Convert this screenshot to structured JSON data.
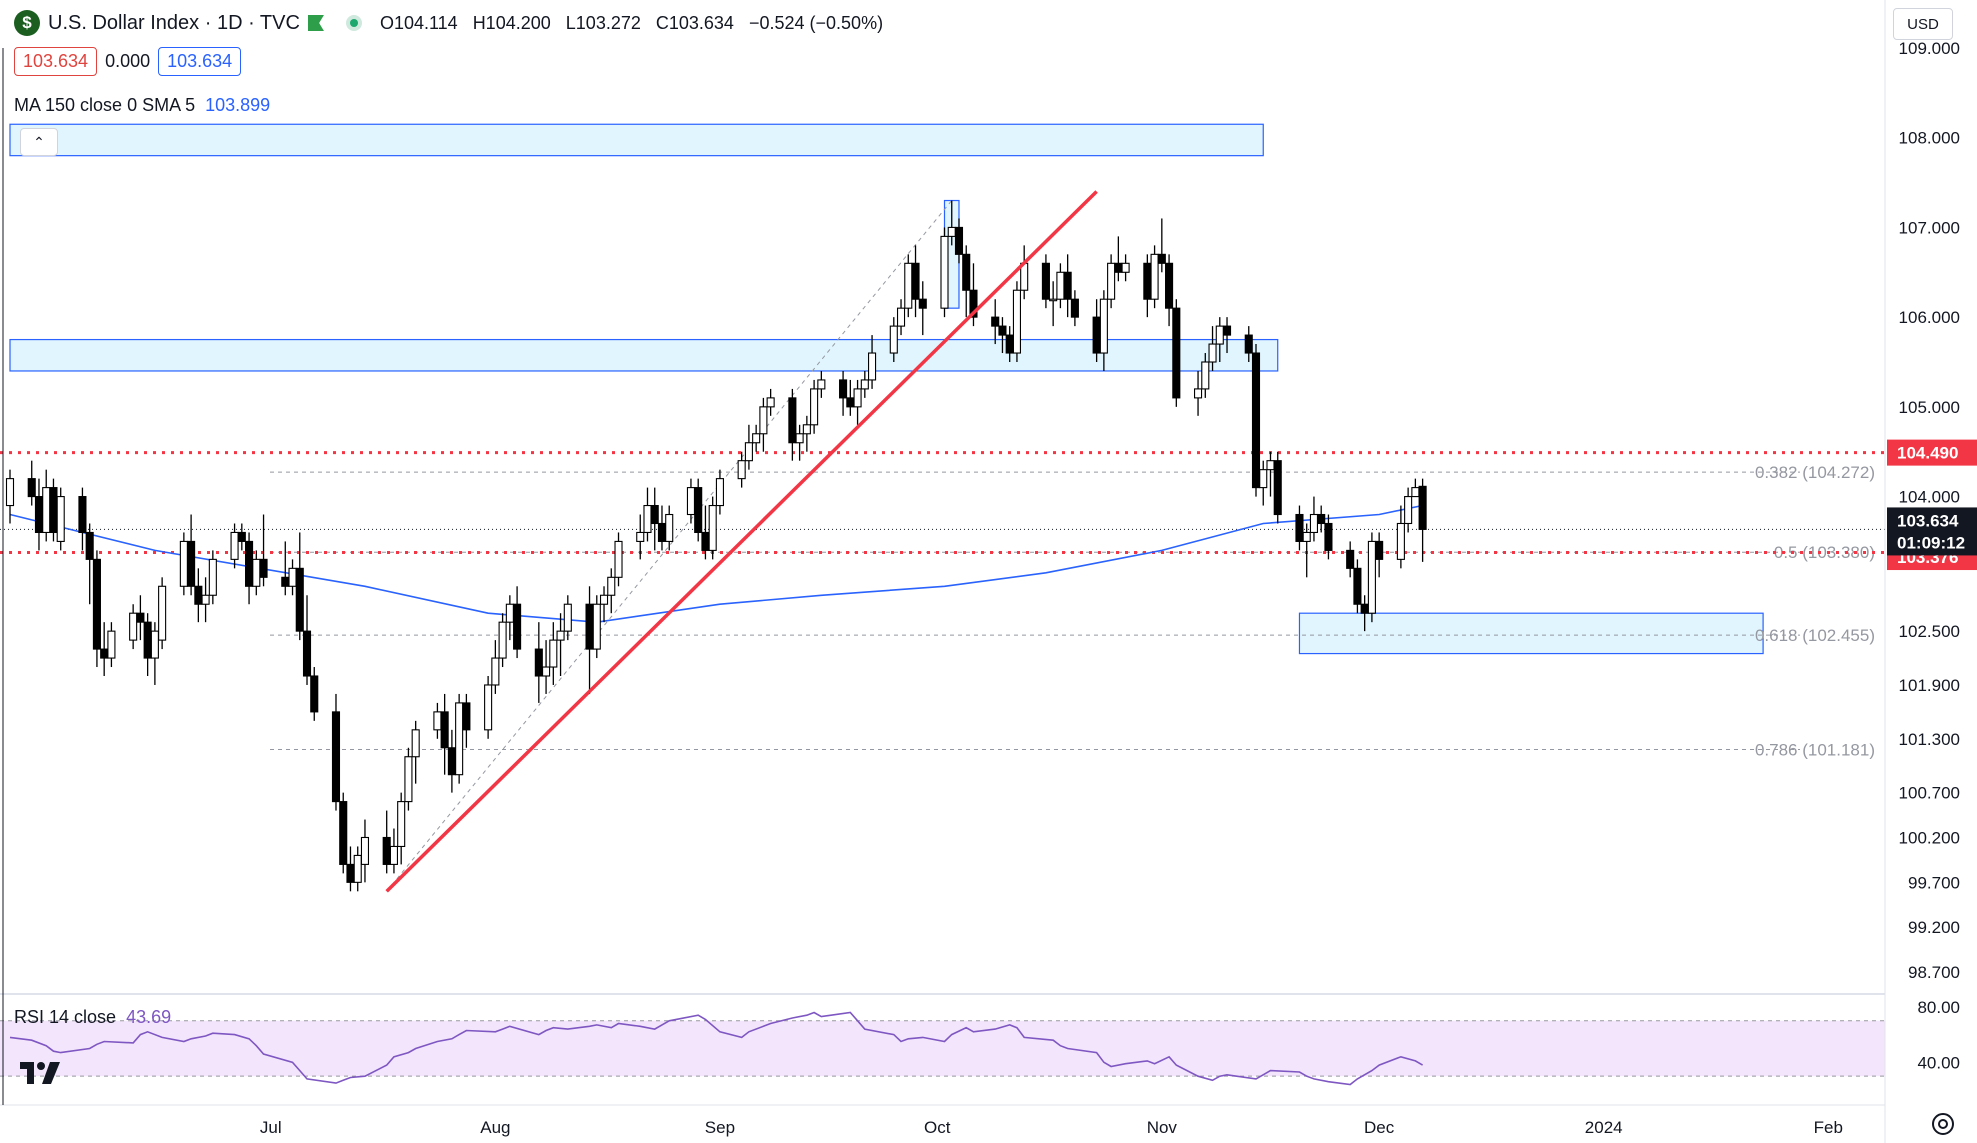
{
  "header": {
    "logo_text": "$",
    "title": "U.S. Dollar Index · 1D · TVC",
    "ohlc": {
      "open_label": "O104.114",
      "high_label": "H104.200",
      "low_label": "L103.272",
      "close_label": "C103.634",
      "change_label": "−0.524 (−0.50%)"
    },
    "bid": "103.634",
    "spread": "0.000",
    "ask": "103.634",
    "ma_label": "MA 150 close 0 SMA 5",
    "ma_value": "103.899",
    "currency": "USD",
    "collapse_icon": "chevron-up-icon"
  },
  "rsi": {
    "label": "RSI 14 close",
    "value": "43.69",
    "axis_ticks": [
      "80.00",
      "40.00"
    ]
  },
  "colors": {
    "up": "#ffffff",
    "down": "#000000",
    "ma": "#2962ff",
    "trendline": "#f23645",
    "resistance_dotted": "#f23645",
    "zone_fill": "#e1f5fe",
    "zone_border": "#2962ff",
    "rsi_line": "#7e57c2",
    "rsi_band": "#f3e5fb"
  },
  "price_axis_ticks": [
    "109.000",
    "108.000",
    "107.000",
    "106.000",
    "105.000",
    "104.000",
    "102.500",
    "101.900",
    "101.300",
    "100.700",
    "100.200",
    "99.700",
    "99.200",
    "98.700"
  ],
  "price_labels": {
    "level_red": "104.490",
    "last_price": "103.634",
    "countdown": "01:09:12",
    "level_red_2": "103.376"
  },
  "fib_labels": [
    "0.382 (104.272)",
    "0.5 (103.380)",
    "0.618 (102.455)",
    "0.786 (101.181)"
  ],
  "time_axis": [
    "Jul",
    "Aug",
    "Sep",
    "Oct",
    "Nov",
    "Dec",
    "2024",
    "Feb"
  ],
  "chart_data": {
    "type": "candlestick",
    "title": "U.S. Dollar Index · 1D · TVC",
    "interval": "1D",
    "ylim": [
      98.5,
      109.0
    ],
    "x_range": [
      "2023-05-26",
      "2024-02-08"
    ],
    "candles": [
      [
        "2023-05-26",
        103.9,
        104.3,
        103.7,
        104.2
      ],
      [
        "2023-05-29",
        104.2,
        104.4,
        103.9,
        104.0
      ],
      [
        "2023-05-30",
        104.0,
        104.2,
        103.4,
        103.6
      ],
      [
        "2023-05-31",
        103.6,
        104.3,
        103.5,
        104.1
      ],
      [
        "2023-06-01",
        104.1,
        104.2,
        103.5,
        103.6
      ],
      [
        "2023-06-02",
        103.5,
        104.1,
        103.4,
        104.0
      ],
      [
        "2023-06-05",
        104.0,
        104.1,
        103.4,
        103.6
      ],
      [
        "2023-06-06",
        103.6,
        103.7,
        102.8,
        103.3
      ],
      [
        "2023-06-07",
        103.3,
        103.4,
        102.1,
        102.3
      ],
      [
        "2023-06-08",
        102.3,
        102.6,
        102.0,
        102.2
      ],
      [
        "2023-06-09",
        102.2,
        102.6,
        102.1,
        102.5
      ],
      [
        "2023-06-12",
        102.4,
        102.8,
        102.3,
        102.7
      ],
      [
        "2023-06-13",
        102.7,
        102.9,
        102.4,
        102.6
      ],
      [
        "2023-06-14",
        102.6,
        102.7,
        102.0,
        102.2
      ],
      [
        "2023-06-15",
        102.2,
        102.6,
        101.9,
        102.5
      ],
      [
        "2023-06-16",
        102.4,
        103.1,
        102.3,
        103.0
      ],
      [
        "2023-06-19",
        103.0,
        103.6,
        102.9,
        103.5
      ],
      [
        "2023-06-20",
        103.5,
        103.8,
        102.9,
        103.0
      ],
      [
        "2023-06-21",
        103.0,
        103.2,
        102.6,
        102.8
      ],
      [
        "2023-06-22",
        102.8,
        103.1,
        102.6,
        102.9
      ],
      [
        "2023-06-23",
        102.9,
        103.4,
        102.8,
        103.3
      ],
      [
        "2023-06-26",
        103.3,
        103.7,
        103.2,
        103.6
      ],
      [
        "2023-06-27",
        103.6,
        103.7,
        103.4,
        103.5
      ],
      [
        "2023-06-28",
        103.5,
        103.6,
        102.8,
        103.0
      ],
      [
        "2023-06-29",
        103.0,
        103.4,
        102.9,
        103.3
      ],
      [
        "2023-06-30",
        103.3,
        103.8,
        103.0,
        103.1
      ],
      [
        "2023-07-03",
        103.1,
        103.5,
        102.9,
        103.0
      ],
      [
        "2023-07-04",
        103.0,
        103.3,
        102.9,
        103.2
      ],
      [
        "2023-07-05",
        103.2,
        103.6,
        102.4,
        102.5
      ],
      [
        "2023-07-06",
        102.5,
        102.9,
        101.9,
        102.0
      ],
      [
        "2023-07-07",
        102.0,
        102.1,
        101.5,
        101.6
      ],
      [
        "2023-07-10",
        101.6,
        101.8,
        100.5,
        100.6
      ],
      [
        "2023-07-11",
        100.6,
        100.7,
        99.8,
        99.9
      ],
      [
        "2023-07-12",
        99.9,
        100.1,
        99.6,
        99.7
      ],
      [
        "2023-07-13",
        99.7,
        100.1,
        99.6,
        100.0
      ],
      [
        "2023-07-14",
        99.9,
        100.4,
        99.7,
        100.2
      ],
      [
        "2023-07-17",
        100.2,
        100.5,
        99.8,
        99.9
      ],
      [
        "2023-07-18",
        99.9,
        100.3,
        99.8,
        100.1
      ],
      [
        "2023-07-19",
        100.1,
        100.7,
        99.9,
        100.6
      ],
      [
        "2023-07-20",
        100.6,
        101.2,
        100.5,
        101.1
      ],
      [
        "2023-07-21",
        101.1,
        101.5,
        100.8,
        101.4
      ],
      [
        "2023-07-24",
        101.4,
        101.7,
        101.3,
        101.6
      ],
      [
        "2023-07-25",
        101.6,
        101.8,
        100.9,
        101.2
      ],
      [
        "2023-07-26",
        101.2,
        101.4,
        100.7,
        100.9
      ],
      [
        "2023-07-27",
        100.9,
        101.8,
        100.8,
        101.7
      ],
      [
        "2023-07-28",
        101.7,
        101.8,
        101.2,
        101.4
      ],
      [
        "2023-07-31",
        101.4,
        102.0,
        101.3,
        101.9
      ],
      [
        "2023-08-01",
        101.9,
        102.4,
        101.8,
        102.2
      ],
      [
        "2023-08-02",
        102.2,
        102.7,
        102.1,
        102.6
      ],
      [
        "2023-08-03",
        102.6,
        102.9,
        102.4,
        102.8
      ],
      [
        "2023-08-04",
        102.8,
        103.0,
        102.2,
        102.3
      ],
      [
        "2023-08-07",
        102.3,
        102.6,
        101.7,
        102.0
      ],
      [
        "2023-08-08",
        102.0,
        102.4,
        101.8,
        102.1
      ],
      [
        "2023-08-09",
        102.1,
        102.6,
        101.9,
        102.4
      ],
      [
        "2023-08-10",
        102.4,
        102.7,
        102.0,
        102.5
      ],
      [
        "2023-08-11",
        102.5,
        102.9,
        102.4,
        102.8
      ],
      [
        "2023-08-14",
        102.8,
        103.0,
        101.8,
        102.3
      ],
      [
        "2023-08-15",
        102.3,
        102.9,
        102.2,
        102.8
      ],
      [
        "2023-08-16",
        102.8,
        103.0,
        102.6,
        102.9
      ],
      [
        "2023-08-17",
        102.9,
        103.2,
        102.7,
        103.1
      ],
      [
        "2023-08-18",
        103.1,
        103.6,
        103.0,
        103.5
      ],
      [
        "2023-08-21",
        103.5,
        103.8,
        103.3,
        103.6
      ],
      [
        "2023-08-22",
        103.6,
        104.1,
        103.5,
        103.9
      ],
      [
        "2023-08-23",
        103.9,
        104.1,
        103.4,
        103.7
      ],
      [
        "2023-08-24",
        103.7,
        103.9,
        103.4,
        103.5
      ],
      [
        "2023-08-25",
        103.5,
        103.9,
        103.4,
        103.8
      ],
      [
        "2023-08-28",
        103.8,
        104.2,
        103.7,
        104.1
      ],
      [
        "2023-08-29",
        104.1,
        104.2,
        103.5,
        103.6
      ],
      [
        "2023-08-30",
        103.6,
        103.9,
        103.3,
        103.4
      ],
      [
        "2023-08-31",
        103.4,
        104.0,
        103.3,
        103.9
      ],
      [
        "2023-09-01",
        103.9,
        104.3,
        103.8,
        104.2
      ],
      [
        "2023-09-04",
        104.2,
        104.5,
        104.1,
        104.4
      ],
      [
        "2023-09-05",
        104.4,
        104.8,
        104.3,
        104.6
      ],
      [
        "2023-09-06",
        104.6,
        104.8,
        104.5,
        104.7
      ],
      [
        "2023-09-07",
        104.7,
        105.1,
        104.5,
        105.0
      ],
      [
        "2023-09-08",
        105.0,
        105.2,
        104.9,
        105.1
      ],
      [
        "2023-09-11",
        105.1,
        105.2,
        104.4,
        104.6
      ],
      [
        "2023-09-12",
        104.6,
        104.8,
        104.4,
        104.7
      ],
      [
        "2023-09-13",
        104.7,
        104.9,
        104.5,
        104.8
      ],
      [
        "2023-09-14",
        104.8,
        105.3,
        104.7,
        105.2
      ],
      [
        "2023-09-15",
        105.2,
        105.4,
        105.1,
        105.3
      ],
      [
        "2023-09-18",
        105.3,
        105.4,
        104.9,
        105.1
      ],
      [
        "2023-09-19",
        105.1,
        105.3,
        104.9,
        105.0
      ],
      [
        "2023-09-20",
        105.0,
        105.3,
        104.8,
        105.2
      ],
      [
        "2023-09-21",
        105.2,
        105.4,
        105.1,
        105.3
      ],
      [
        "2023-09-22",
        105.3,
        105.8,
        105.2,
        105.6
      ],
      [
        "2023-09-25",
        105.6,
        106.0,
        105.5,
        105.9
      ],
      [
        "2023-09-26",
        105.9,
        106.2,
        105.8,
        106.1
      ],
      [
        "2023-09-27",
        106.1,
        106.7,
        106.0,
        106.6
      ],
      [
        "2023-09-28",
        106.6,
        106.8,
        106.0,
        106.2
      ],
      [
        "2023-09-29",
        106.2,
        106.4,
        105.8,
        106.1
      ],
      [
        "2023-10-02",
        106.1,
        107.0,
        106.0,
        106.9
      ],
      [
        "2023-10-03",
        106.9,
        107.3,
        106.8,
        107.0
      ],
      [
        "2023-10-04",
        107.0,
        107.1,
        106.6,
        106.7
      ],
      [
        "2023-10-05",
        106.7,
        106.8,
        106.0,
        106.3
      ],
      [
        "2023-10-06",
        106.3,
        106.6,
        105.9,
        106.0
      ],
      [
        "2023-10-09",
        106.0,
        106.2,
        105.7,
        105.9
      ],
      [
        "2023-10-10",
        105.9,
        106.0,
        105.6,
        105.8
      ],
      [
        "2023-10-11",
        105.8,
        105.9,
        105.5,
        105.6
      ],
      [
        "2023-10-12",
        105.6,
        106.4,
        105.5,
        106.3
      ],
      [
        "2023-10-13",
        106.3,
        106.8,
        106.2,
        106.6
      ],
      [
        "2023-10-16",
        106.6,
        106.7,
        106.1,
        106.2
      ],
      [
        "2023-10-17",
        106.2,
        106.4,
        105.9,
        106.2
      ],
      [
        "2023-10-18",
        106.2,
        106.6,
        106.1,
        106.5
      ],
      [
        "2023-10-19",
        106.5,
        106.7,
        106.0,
        106.2
      ],
      [
        "2023-10-20",
        106.2,
        106.3,
        105.9,
        106.0
      ],
      [
        "2023-10-23",
        106.0,
        106.2,
        105.5,
        105.6
      ],
      [
        "2023-10-24",
        105.6,
        106.3,
        105.4,
        106.2
      ],
      [
        "2023-10-25",
        106.2,
        106.7,
        106.1,
        106.6
      ],
      [
        "2023-10-26",
        106.6,
        106.9,
        106.4,
        106.5
      ],
      [
        "2023-10-27",
        106.5,
        106.7,
        106.4,
        106.6
      ],
      [
        "2023-10-30",
        106.6,
        106.7,
        106.0,
        106.2
      ],
      [
        "2023-10-31",
        106.2,
        106.8,
        106.1,
        106.7
      ],
      [
        "2023-11-01",
        106.7,
        107.1,
        106.5,
        106.6
      ],
      [
        "2023-11-02",
        106.6,
        106.7,
        105.9,
        106.1
      ],
      [
        "2023-11-03",
        106.1,
        106.2,
        105.0,
        105.1
      ],
      [
        "2023-11-06",
        105.1,
        105.4,
        104.9,
        105.2
      ],
      [
        "2023-11-07",
        105.2,
        105.6,
        105.1,
        105.5
      ],
      [
        "2023-11-08",
        105.5,
        105.9,
        105.4,
        105.7
      ],
      [
        "2023-11-09",
        105.7,
        106.0,
        105.5,
        105.9
      ],
      [
        "2023-11-10",
        105.9,
        106.0,
        105.6,
        105.8
      ],
      [
        "2023-11-13",
        105.8,
        105.9,
        105.5,
        105.6
      ],
      [
        "2023-11-14",
        105.6,
        105.7,
        104.0,
        104.1
      ],
      [
        "2023-11-15",
        104.1,
        104.4,
        103.9,
        104.3
      ],
      [
        "2023-11-16",
        104.3,
        104.5,
        104.0,
        104.4
      ],
      [
        "2023-11-17",
        104.4,
        104.5,
        103.7,
        103.8
      ],
      [
        "2023-11-20",
        103.8,
        103.9,
        103.4,
        103.5
      ],
      [
        "2023-11-21",
        103.5,
        103.7,
        103.1,
        103.6
      ],
      [
        "2023-11-22",
        103.6,
        104.0,
        103.5,
        103.8
      ],
      [
        "2023-11-23",
        103.8,
        103.9,
        103.6,
        103.7
      ],
      [
        "2023-11-24",
        103.7,
        103.8,
        103.3,
        103.4
      ],
      [
        "2023-11-27",
        103.4,
        103.5,
        103.1,
        103.2
      ],
      [
        "2023-11-28",
        103.2,
        103.3,
        102.7,
        102.8
      ],
      [
        "2023-11-29",
        102.8,
        102.9,
        102.5,
        102.7
      ],
      [
        "2023-11-30",
        102.7,
        103.6,
        102.6,
        103.5
      ],
      [
        "2023-12-01",
        103.5,
        103.6,
        103.1,
        103.3
      ],
      [
        "2023-12-04",
        103.3,
        103.9,
        103.2,
        103.7
      ],
      [
        "2023-12-05",
        103.7,
        104.1,
        103.6,
        104.0
      ],
      [
        "2023-12-06",
        104.0,
        104.2,
        104.0,
        104.1
      ],
      [
        "2023-12-07",
        104.114,
        104.2,
        103.272,
        103.634
      ]
    ],
    "ma": {
      "name": "MA 150 close 0 SMA 5",
      "points": [
        [
          "2023-05-26",
          103.8
        ],
        [
          "2023-06-15",
          103.4
        ],
        [
          "2023-07-14",
          103.0
        ],
        [
          "2023-07-31",
          102.7
        ],
        [
          "2023-08-15",
          102.6
        ],
        [
          "2023-09-01",
          102.8
        ],
        [
          "2023-09-15",
          102.9
        ],
        [
          "2023-10-02",
          103.0
        ],
        [
          "2023-10-16",
          103.15
        ],
        [
          "2023-11-01",
          103.4
        ],
        [
          "2023-11-15",
          103.7
        ],
        [
          "2023-12-01",
          103.8
        ],
        [
          "2023-12-07",
          103.9
        ]
      ]
    },
    "trendline": [
      [
        "2023-07-17",
        99.6
      ],
      [
        "2023-10-23",
        107.4
      ]
    ],
    "dotted_levels": [
      104.49,
      103.376
    ],
    "fib_levels": [
      {
        "label": "0.382",
        "value": 104.272
      },
      {
        "label": "0.5",
        "value": 103.38
      },
      {
        "label": "0.618",
        "value": 102.455
      },
      {
        "label": "0.786",
        "value": 101.181
      }
    ],
    "zones": [
      {
        "from": "2023-05-26",
        "to": "2023-11-15",
        "low": 107.8,
        "high": 108.15
      },
      {
        "from": "2023-05-26",
        "to": "2023-11-17",
        "low": 105.4,
        "high": 105.75
      },
      {
        "from": "2023-11-20",
        "to": "2024-01-23",
        "low": 102.25,
        "high": 102.7
      },
      {
        "from": "2023-10-02",
        "to": "2023-10-04",
        "low": 106.1,
        "high": 107.3
      }
    ],
    "rsi": {
      "name": "RSI 14 close",
      "ylim": [
        20,
        85
      ],
      "bands": [
        30,
        70
      ],
      "values": [
        58,
        56,
        52,
        48,
        47,
        50,
        53,
        55,
        54,
        60,
        62,
        58,
        55,
        57,
        59,
        61,
        60,
        57,
        52,
        46,
        40,
        34,
        28,
        25,
        27,
        29,
        30,
        38,
        44,
        47,
        50,
        55,
        57,
        60,
        63,
        62,
        64,
        66,
        60,
        63,
        65,
        64,
        66,
        67,
        65,
        68,
        66,
        64,
        67,
        70,
        74,
        71,
        62,
        58,
        62,
        66,
        68,
        72,
        74,
        76,
        73,
        76,
        70,
        64,
        60,
        55,
        57,
        58,
        55,
        60,
        65,
        62,
        64,
        67,
        65,
        58,
        56,
        52,
        50,
        47,
        40,
        37,
        39,
        41,
        39,
        44,
        38,
        30,
        27,
        30,
        31,
        28,
        31,
        34,
        33,
        30,
        28,
        26,
        24,
        28,
        34,
        38,
        44,
        41,
        38
      ]
    }
  }
}
